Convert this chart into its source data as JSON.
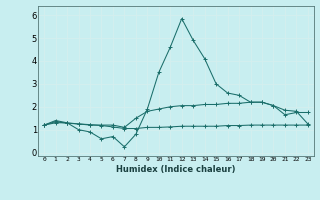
{
  "xlabel": "Humidex (Indice chaleur)",
  "ylabel": "",
  "xlim": [
    -0.5,
    23.5
  ],
  "ylim": [
    -0.15,
    6.4
  ],
  "yticks": [
    0,
    1,
    2,
    3,
    4,
    5,
    6
  ],
  "xticks": [
    0,
    1,
    2,
    3,
    4,
    5,
    6,
    7,
    8,
    9,
    10,
    11,
    12,
    13,
    14,
    15,
    16,
    17,
    18,
    19,
    20,
    21,
    22,
    23
  ],
  "bg_color": "#c8eef0",
  "grid_color": "#aadddd",
  "line_color": "#1a6e6a",
  "line1_y": [
    1.2,
    1.4,
    1.3,
    1.0,
    0.9,
    0.6,
    0.7,
    0.25,
    0.8,
    1.9,
    3.5,
    4.6,
    5.85,
    4.9,
    4.1,
    3.0,
    2.6,
    2.5,
    2.2,
    2.2,
    2.05,
    1.65,
    1.75,
    1.75
  ],
  "line2_y": [
    1.2,
    1.3,
    1.3,
    1.25,
    1.2,
    1.2,
    1.2,
    1.1,
    1.5,
    1.8,
    1.9,
    2.0,
    2.05,
    2.05,
    2.1,
    2.1,
    2.15,
    2.15,
    2.2,
    2.2,
    2.05,
    1.85,
    1.8,
    1.25
  ],
  "line3_y": [
    1.2,
    1.35,
    1.28,
    1.25,
    1.22,
    1.18,
    1.12,
    1.05,
    1.05,
    1.1,
    1.1,
    1.12,
    1.15,
    1.15,
    1.15,
    1.15,
    1.18,
    1.18,
    1.2,
    1.2,
    1.2,
    1.2,
    1.2,
    1.2
  ]
}
